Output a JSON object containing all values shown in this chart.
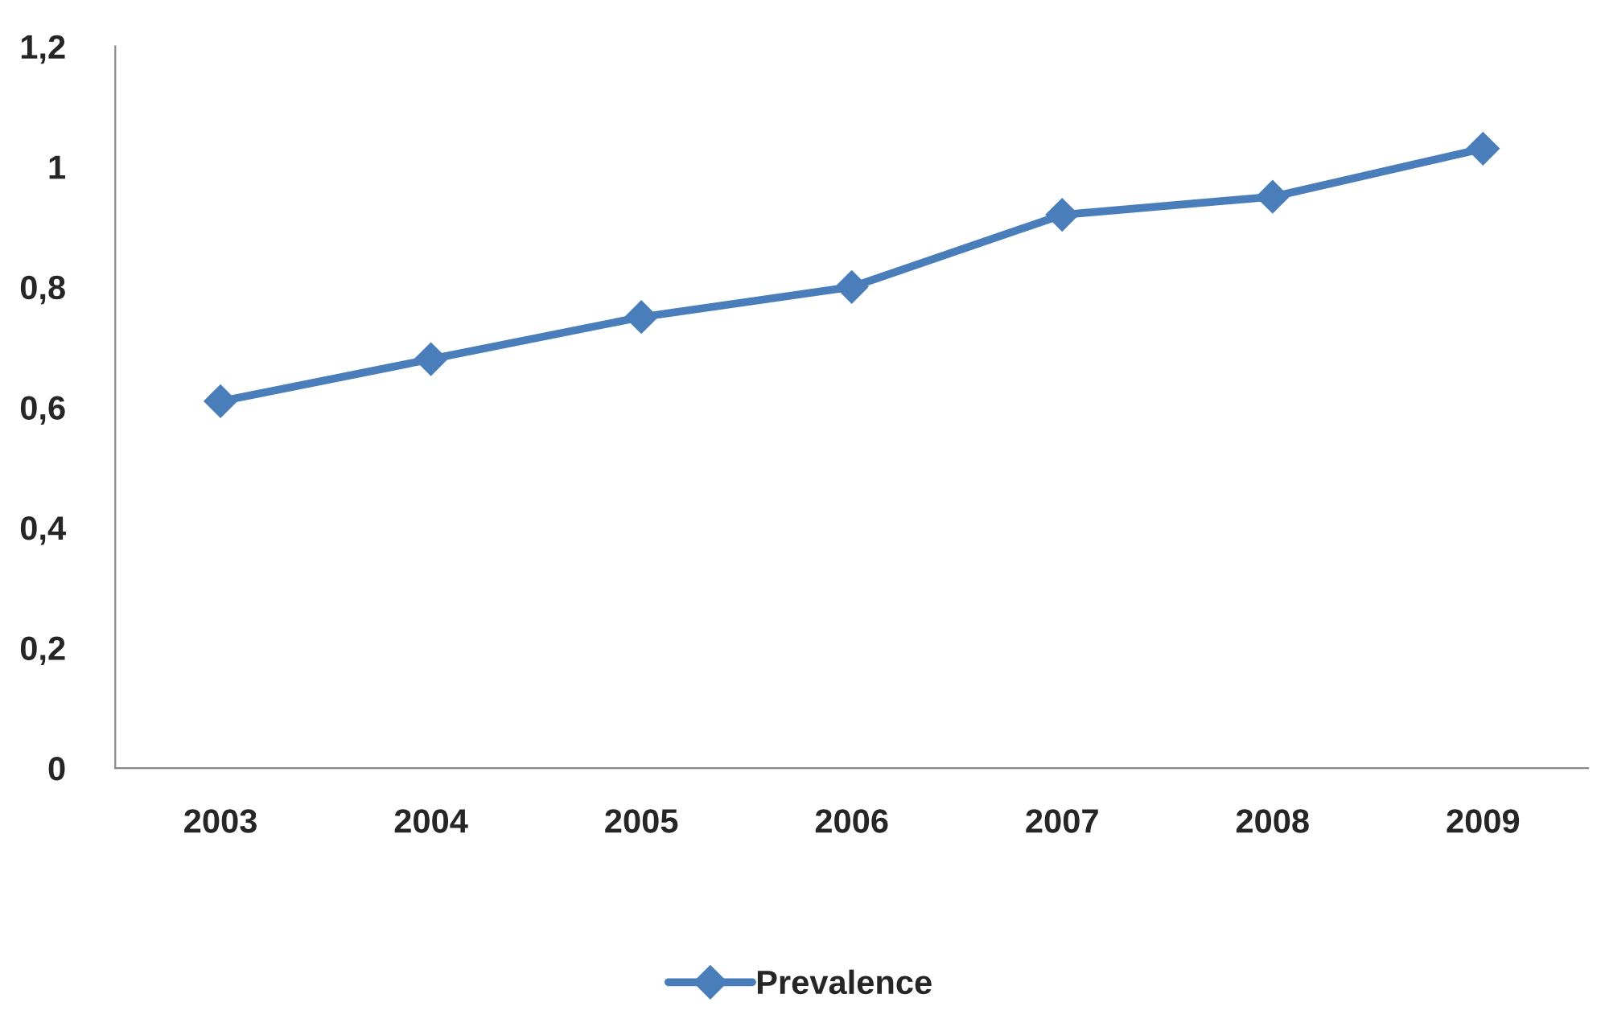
{
  "chart_data": {
    "type": "line",
    "categories": [
      "2003",
      "2004",
      "2005",
      "2006",
      "2007",
      "2008",
      "2009"
    ],
    "series": [
      {
        "name": "Prevalence",
        "color": "#4a7ebb",
        "values": [
          0.61,
          0.68,
          0.75,
          0.8,
          0.92,
          0.95,
          1.03
        ]
      }
    ],
    "ylim": [
      0,
      1.2
    ],
    "yticks": [
      0,
      {
        "value": 0.2,
        "label": "0,2"
      },
      {
        "value": 0.4,
        "label": "0,4"
      },
      {
        "value": 0.6,
        "label": "0,6"
      },
      {
        "value": 0.8,
        "label": "0,8"
      },
      1,
      {
        "value": 1.2,
        "label": "1,2"
      }
    ],
    "grid": false,
    "legend": "bottom",
    "marker": "diamond",
    "line_style": "solid"
  }
}
